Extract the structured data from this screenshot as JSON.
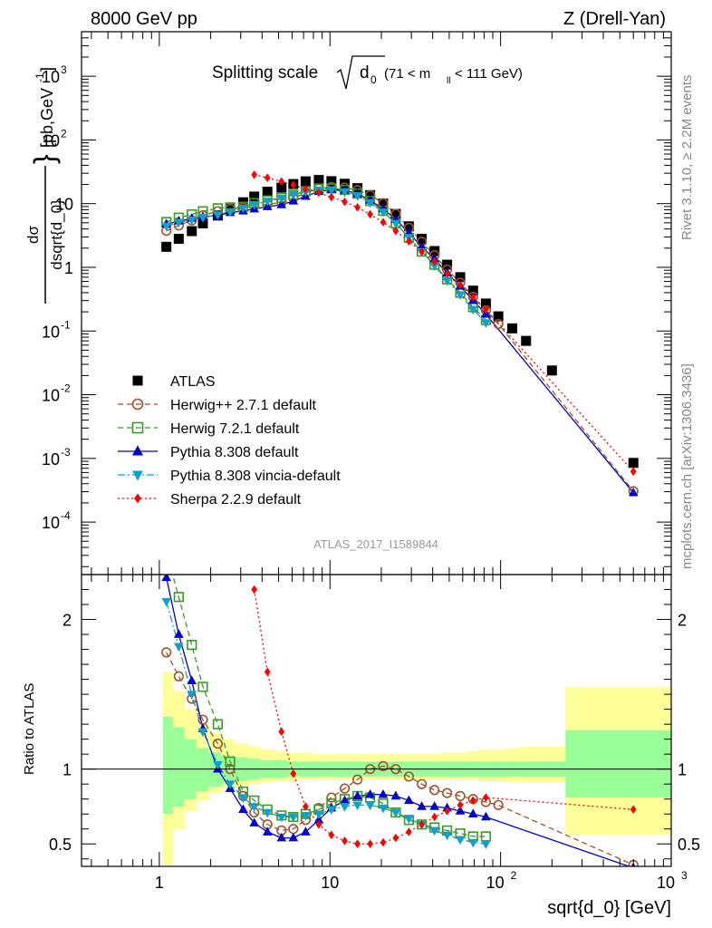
{
  "header": {
    "left": "8000 GeV pp",
    "right": "Z (Drell-Yan)"
  },
  "side_labels": {
    "rivet": "Rivet 3.1.10, ≥ 2.2M events",
    "mcplots": "mcplots.cern.ch [arXiv:1306.3436]"
  },
  "chart_data": {
    "type": "scatter",
    "title_main": "Splitting scale",
    "title_sym": "d",
    "title_sub": "0",
    "title_range_a": " (71 < m",
    "title_range_sub": "ll",
    "title_range_b": " < 111 GeV)",
    "analysis_id": "ATLAS_2017_I1589844",
    "xlabel": "sqrt{d_0} [GeV]",
    "ylabel_main": "dσ / dsqrt{d_0} [pb,GeV⁻¹]",
    "ylabel_num": "dσ",
    "ylabel_den": "dsqrt{d_0}",
    "ylabel_unit": "[pb,GeV",
    "ylabel_unit_exp": "-1",
    "ylabel_unit_end": "]",
    "ylabel_ratio": "Ratio to ATLAS",
    "x_scale": "log",
    "xlim": [
      0.35,
      1000
    ],
    "ylim_main": [
      1.5e-05,
      5000
    ],
    "ylim_ratio": [
      0.35,
      2.3
    ],
    "x_tick_labels": [
      "1",
      "10",
      "10",
      "2",
      "10",
      "3"
    ],
    "main_y_tick_labels": [
      {
        "base": "10",
        "exp": "-4"
      },
      {
        "base": "10",
        "exp": "-3"
      },
      {
        "base": "10",
        "exp": "-2"
      },
      {
        "base": "10",
        "exp": "-1"
      },
      {
        "base": "1",
        "exp": ""
      },
      {
        "base": "10",
        "exp": ""
      },
      {
        "base": "10",
        "exp": "2"
      },
      {
        "base": "10",
        "exp": "3"
      }
    ],
    "ratio_y_tick_labels": [
      "0.5",
      "1",
      "2"
    ],
    "legend_position": "center-left",
    "x": [
      1.1,
      1.3,
      1.55,
      1.8,
      2.2,
      2.6,
      3.1,
      3.6,
      4.3,
      5.2,
      6.1,
      7.2,
      8.6,
      10.2,
      12.2,
      14.5,
      17.2,
      20.5,
      24.3,
      29,
      34.5,
      41,
      48.6,
      58,
      69,
      82,
      97,
      117,
      141,
      200,
      600
    ],
    "atlas": [
      2.1,
      2.8,
      3.7,
      4.9,
      6.5,
      8.3,
      10.5,
      12.9,
      15.4,
      17.8,
      20.3,
      22.4,
      23.5,
      22.5,
      20.5,
      17.5,
      13.6,
      10,
      6.9,
      4.4,
      2.8,
      1.8,
      1.1,
      0.7,
      0.43,
      0.27,
      0.17,
      0.11,
      0.07,
      0.024,
      0.00085
    ],
    "series": [
      {
        "name": "ATLAS",
        "color": "#000000",
        "marker": "square-filled",
        "line": "none"
      },
      {
        "name": "Herwig++ 2.7.1 default",
        "color": "#a0522d",
        "marker": "circle-open",
        "line": "dashed",
        "ratio": [
          1.78,
          1.62,
          1.47,
          1.33,
          1.17,
          1.0,
          0.82,
          0.71,
          0.63,
          0.59,
          0.6,
          0.66,
          0.74,
          0.81,
          0.87,
          0.93,
          1.0,
          1.02,
          1.0,
          0.95,
          0.9,
          0.86,
          0.84,
          0.82,
          0.8,
          0.78,
          0.76,
          null,
          null,
          null,
          0.36
        ]
      },
      {
        "name": "Herwig 7.2.1 default",
        "color": "#3a9a22",
        "marker": "square-open",
        "line": "dashed",
        "ratio": [
          2.45,
          2.15,
          1.83,
          1.55,
          1.3,
          1.05,
          0.85,
          0.79,
          0.73,
          0.69,
          0.68,
          0.7,
          0.73,
          0.77,
          0.8,
          0.82,
          0.81,
          0.77,
          0.71,
          0.66,
          0.63,
          0.61,
          0.59,
          0.57,
          0.55,
          0.55,
          null,
          null,
          null,
          null,
          null
        ]
      },
      {
        "name": "Pythia 8.308 default",
        "color": "#0000cc",
        "marker": "triangle-up-filled",
        "line": "solid",
        "ratio": [
          2.28,
          1.9,
          1.59,
          1.27,
          1.0,
          0.87,
          0.73,
          0.64,
          0.58,
          0.54,
          0.54,
          0.58,
          0.66,
          0.74,
          0.79,
          0.82,
          0.83,
          0.83,
          0.82,
          0.79,
          0.75,
          0.75,
          0.74,
          0.72,
          0.7,
          0.68,
          null,
          null,
          null,
          null,
          0.34
        ]
      },
      {
        "name": "Pythia 8.308 vincia-default",
        "color": "#12a0c8",
        "marker": "triangle-down-filled",
        "line": "dashdot",
        "ratio": [
          2.12,
          1.82,
          1.5,
          1.25,
          1.03,
          0.9,
          0.81,
          0.75,
          0.71,
          0.68,
          0.68,
          0.69,
          0.7,
          0.73,
          0.75,
          0.76,
          0.76,
          0.74,
          0.71,
          0.67,
          0.63,
          0.59,
          0.56,
          0.53,
          0.51,
          0.5,
          null,
          null,
          null,
          null,
          null
        ]
      },
      {
        "name": "Sherpa 2.2.9 default",
        "color": "#ff0000",
        "marker": "diamond-filled",
        "line": "dotted",
        "ratio": [
          null,
          null,
          null,
          null,
          null,
          null,
          null,
          2.2,
          1.65,
          1.25,
          0.97,
          0.75,
          0.63,
          0.56,
          0.52,
          0.5,
          0.5,
          0.51,
          0.54,
          0.58,
          0.63,
          0.68,
          0.72,
          0.76,
          0.79,
          0.81,
          null,
          null,
          null,
          null,
          0.73
        ]
      }
    ],
    "uncertainty_bands": {
      "edges": [
        1.05,
        1.2,
        1.4,
        1.65,
        1.95,
        2.3,
        2.75,
        3.3,
        3.9,
        4.7,
        5.6,
        6.6,
        7.9,
        9.4,
        11.2,
        13.3,
        15.8,
        18.8,
        22.4,
        26.6,
        31.6,
        37.6,
        44.7,
        53.2,
        63.2,
        75.2,
        89.5,
        106,
        130,
        240,
        1000
      ],
      "yellow_lower": [
        0.36,
        0.6,
        0.72,
        0.79,
        0.84,
        0.87,
        0.89,
        0.9,
        0.91,
        0.92,
        0.92,
        0.93,
        0.93,
        0.93,
        0.93,
        0.93,
        0.93,
        0.93,
        0.93,
        0.93,
        0.93,
        0.93,
        0.93,
        0.93,
        0.93,
        0.92,
        0.92,
        0.91,
        0.91,
        0.56
      ],
      "yellow_upper": [
        1.65,
        1.52,
        1.4,
        1.3,
        1.24,
        1.2,
        1.17,
        1.15,
        1.13,
        1.12,
        1.11,
        1.11,
        1.1,
        1.1,
        1.1,
        1.1,
        1.1,
        1.1,
        1.1,
        1.1,
        1.1,
        1.1,
        1.11,
        1.11,
        1.12,
        1.13,
        1.13,
        1.14,
        1.15,
        1.55
      ],
      "green_lower": [
        0.7,
        0.75,
        0.8,
        0.85,
        0.88,
        0.9,
        0.92,
        0.93,
        0.94,
        0.94,
        0.95,
        0.95,
        0.95,
        0.95,
        0.95,
        0.95,
        0.95,
        0.95,
        0.95,
        0.95,
        0.95,
        0.95,
        0.95,
        0.95,
        0.95,
        0.95,
        0.95,
        0.95,
        0.95,
        0.81
      ],
      "green_upper": [
        1.35,
        1.28,
        1.2,
        1.14,
        1.11,
        1.09,
        1.08,
        1.07,
        1.06,
        1.06,
        1.05,
        1.05,
        1.05,
        1.05,
        1.05,
        1.05,
        1.05,
        1.05,
        1.05,
        1.05,
        1.05,
        1.05,
        1.05,
        1.05,
        1.05,
        1.05,
        1.05,
        1.05,
        1.05,
        1.26
      ],
      "yellow_color": "#ffff99",
      "green_color": "#99ff99"
    }
  }
}
